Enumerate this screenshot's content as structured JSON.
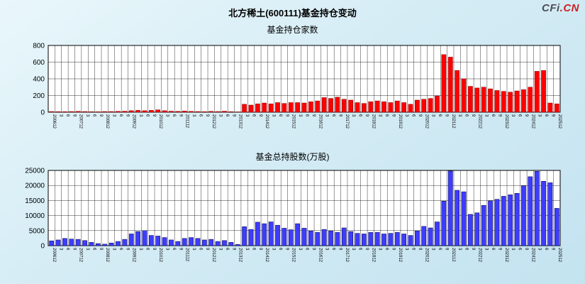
{
  "header": {
    "title": "北方稀土(600111)基金持仓变动",
    "logo": {
      "main": "CFi",
      "suffix": ".CN"
    }
  },
  "chart_data": [
    {
      "type": "bar",
      "title": "基金持仓家数",
      "bar_color": "#ff0000",
      "bar_stroke": "#7a0000",
      "grid_color": "#000000",
      "ylim": [
        0,
        800
      ],
      "yticks": [
        0,
        200,
        400,
        600,
        800
      ],
      "x_labels": [
        "200612",
        "3",
        "6",
        "9",
        "200712",
        "3",
        "6",
        "9",
        "200812",
        "3",
        "6",
        "9",
        "200912",
        "3",
        "6",
        "9",
        "201012",
        "3",
        "6",
        "9",
        "201112",
        "3",
        "6",
        "9",
        "201212",
        "3",
        "6",
        "9",
        "201312",
        "3",
        "6",
        "9",
        "201412",
        "3",
        "6",
        "9",
        "201512",
        "3",
        "6",
        "9",
        "201612",
        "3",
        "6",
        "9",
        "201712",
        "3",
        "6",
        "9",
        "201812",
        "3",
        "6",
        "9",
        "201912",
        "3",
        "6",
        "9",
        "202012",
        "3",
        "6",
        "9",
        "202112",
        "3",
        "6",
        "9",
        "202212",
        "3",
        "6",
        "9",
        "202312",
        "3",
        "6",
        "9",
        "202412",
        "3",
        "6",
        "9",
        "202512"
      ],
      "values": [
        8,
        6,
        6,
        8,
        10,
        8,
        6,
        5,
        8,
        8,
        10,
        12,
        18,
        22,
        18,
        22,
        28,
        18,
        12,
        10,
        14,
        10,
        8,
        6,
        10,
        8,
        12,
        6,
        4,
        95,
        85,
        100,
        110,
        100,
        115,
        105,
        115,
        115,
        110,
        125,
        135,
        175,
        165,
        180,
        155,
        145,
        115,
        105,
        125,
        135,
        125,
        115,
        135,
        115,
        95,
        145,
        155,
        165,
        195,
        690,
        660,
        500,
        400,
        310,
        290,
        300,
        280,
        260,
        250,
        240,
        255,
        270,
        300,
        490,
        500,
        110,
        100
      ]
    },
    {
      "type": "bar",
      "title": "基金总持股数(万股)",
      "bar_color": "#3d3dff",
      "bar_stroke": "#000040",
      "grid_color": "#000000",
      "ylim": [
        0,
        25000
      ],
      "yticks": [
        0,
        5000,
        10000,
        15000,
        20000,
        25000
      ],
      "x_labels": [
        "200612",
        "3",
        "6",
        "9",
        "200712",
        "3",
        "6",
        "9",
        "200812",
        "3",
        "6",
        "9",
        "200912",
        "3",
        "6",
        "9",
        "201012",
        "3",
        "6",
        "9",
        "201112",
        "3",
        "6",
        "9",
        "201212",
        "3",
        "6",
        "9",
        "201312",
        "3",
        "6",
        "9",
        "201412",
        "3",
        "6",
        "9",
        "201512",
        "3",
        "6",
        "9",
        "201612",
        "3",
        "6",
        "9",
        "201712",
        "3",
        "6",
        "9",
        "201812",
        "3",
        "6",
        "9",
        "201912",
        "3",
        "6",
        "9",
        "202012",
        "3",
        "6",
        "9",
        "202112",
        "3",
        "6",
        "9",
        "202212",
        "3",
        "6",
        "9",
        "202312",
        "3",
        "6",
        "9",
        "202412",
        "3",
        "6",
        "9",
        "202512"
      ],
      "values": [
        1600,
        1900,
        2400,
        2200,
        2100,
        1700,
        1100,
        700,
        500,
        900,
        1400,
        2100,
        3900,
        4700,
        5000,
        3400,
        3200,
        2700,
        1900,
        1400,
        2400,
        2700,
        2400,
        1900,
        2100,
        1400,
        1700,
        1100,
        400,
        6300,
        5400,
        7800,
        7300,
        7900,
        6800,
        5800,
        5300,
        7300,
        5800,
        4900,
        4400,
        5400,
        4900,
        4400,
        5900,
        4700,
        4100,
        3900,
        4400,
        4400,
        3900,
        4100,
        4400,
        3900,
        3400,
        4900,
        6400,
        5900,
        7900,
        14800,
        24800,
        18400,
        17900,
        10400,
        10900,
        13400,
        14900,
        15400,
        16400,
        16900,
        17400,
        19900,
        22900,
        24700,
        21400,
        20900,
        12400
      ]
    }
  ]
}
